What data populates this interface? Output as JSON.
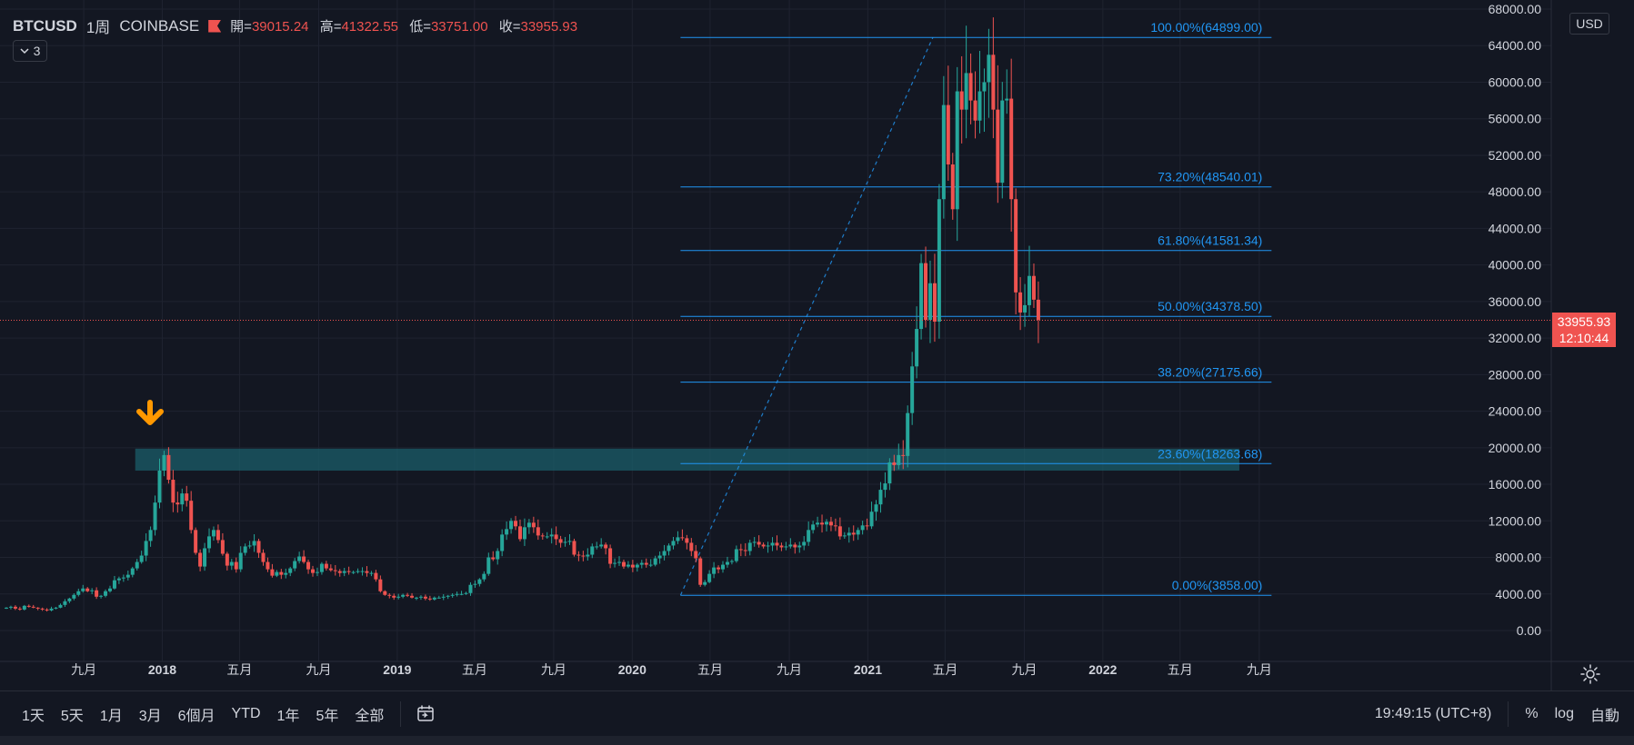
{
  "legend": {
    "symbol": "BTCUSD",
    "interval": "1周",
    "exchange": "COINBASE",
    "ohlc": [
      {
        "label": "開=",
        "value": "39015.24"
      },
      {
        "label": "高=",
        "value": "41322.55"
      },
      {
        "label": "低=",
        "value": "33751.00"
      },
      {
        "label": "收=",
        "value": "33955.93"
      }
    ],
    "indicator_count": "3"
  },
  "currency_label": "USD",
  "last_price": {
    "value": "33955.93",
    "countdown": "12:10:44"
  },
  "colors": {
    "up": "#26a69a",
    "down": "#ef5350",
    "fib": "#2196f3",
    "zone": "#1b5e6a",
    "arrow": "#ff9800"
  },
  "bottom_bar": {
    "ranges": [
      "1天",
      "5天",
      "1月",
      "3月",
      "6個月",
      "YTD",
      "1年",
      "5年",
      "全部"
    ],
    "time": "19:49:15 (UTC+8)",
    "percent": "%",
    "log": "log",
    "auto": "自動"
  },
  "chart_data": {
    "type": "candlestick",
    "ylim": [
      0,
      68000
    ],
    "y_ticks": [
      0,
      4000,
      8000,
      12000,
      16000,
      20000,
      24000,
      28000,
      32000,
      36000,
      40000,
      44000,
      48000,
      52000,
      56000,
      60000,
      64000,
      68000
    ],
    "y_tick_labels": [
      "0.00",
      "4000.00",
      "8000.00",
      "12000.00",
      "16000.00",
      "20000.00",
      "24000.00",
      "28000.00",
      "32000.00",
      "36000.00",
      "40000.00",
      "44000.00",
      "48000.00",
      "52000.00",
      "56000.00",
      "60000.00",
      "64000.00",
      "68000.00"
    ],
    "x_start": "2017-05-01",
    "x_ticks": [
      {
        "date": "2017-09-01",
        "label": "九月",
        "bold": false
      },
      {
        "date": "2018-01-01",
        "label": "2018",
        "bold": true
      },
      {
        "date": "2018-05-01",
        "label": "五月",
        "bold": false
      },
      {
        "date": "2018-09-01",
        "label": "九月",
        "bold": false
      },
      {
        "date": "2019-01-01",
        "label": "2019",
        "bold": true
      },
      {
        "date": "2019-05-01",
        "label": "五月",
        "bold": false
      },
      {
        "date": "2019-09-01",
        "label": "九月",
        "bold": false
      },
      {
        "date": "2020-01-01",
        "label": "2020",
        "bold": true
      },
      {
        "date": "2020-05-01",
        "label": "五月",
        "bold": false
      },
      {
        "date": "2020-09-01",
        "label": "九月",
        "bold": false
      },
      {
        "date": "2021-01-01",
        "label": "2021",
        "bold": true
      },
      {
        "date": "2021-05-01",
        "label": "五月",
        "bold": false
      },
      {
        "date": "2021-09-01",
        "label": "九月",
        "bold": false
      },
      {
        "date": "2022-01-01",
        "label": "2022",
        "bold": true
      },
      {
        "date": "2022-05-01",
        "label": "五月",
        "bold": false
      },
      {
        "date": "2022-09-01",
        "label": "九月",
        "bold": false
      }
    ],
    "closes": [
      2500,
      2600,
      2400,
      2300,
      2700,
      2600,
      2500,
      2400,
      2300,
      2200,
      2400,
      2500,
      2800,
      3200,
      3500,
      3900,
      4300,
      4600,
      4300,
      4400,
      3700,
      3800,
      4300,
      4600,
      5500,
      5700,
      5800,
      6100,
      6800,
      7500,
      8200,
      9800,
      11000,
      14000,
      17500,
      19200,
      16500,
      14000,
      13800,
      15000,
      14200,
      11000,
      8500,
      7000,
      9000,
      10300,
      11000,
      9900,
      8400,
      7100,
      7500,
      6700,
      8500,
      9200,
      9300,
      9800,
      8500,
      7500,
      6700,
      6000,
      6400,
      6100,
      6300,
      6800,
      7600,
      8100,
      7500,
      6700,
      6300,
      6400,
      7300,
      6800,
      6600,
      6500,
      6300,
      6500,
      6400,
      6400,
      6500,
      6500,
      6300,
      6300,
      5600,
      4300,
      3900,
      3800,
      3600,
      3700,
      3900,
      3800,
      3600,
      3600,
      3700,
      3500,
      3400,
      3600,
      3600,
      3700,
      3800,
      3900,
      4000,
      4000,
      4100,
      5000,
      5100,
      5600,
      6200,
      8000,
      7800,
      8700,
      10500,
      11100,
      12000,
      11400,
      10000,
      11300,
      11800,
      11300,
      10400,
      10300,
      10300,
      10500,
      10000,
      9600,
      9700,
      9800,
      8300,
      8200,
      8100,
      8300,
      9200,
      9200,
      9400,
      9000,
      7300,
      7400,
      7500,
      7000,
      7200,
      6900,
      7200,
      7400,
      7200,
      7200,
      7900,
      8200,
      8700,
      9300,
      9800,
      10200,
      10100,
      9600,
      8700,
      7900,
      5000,
      5300,
      6200,
      6900,
      6700,
      7200,
      7500,
      7600,
      8900,
      8800,
      8700,
      9600,
      9700,
      9400,
      9200,
      9300,
      9600,
      9300,
      9100,
      9200,
      9400,
      9100,
      9300,
      9700,
      11000,
      11600,
      11800,
      11600,
      11900,
      11500,
      11400,
      10300,
      10400,
      10700,
      10500,
      11000,
      11500,
      11400,
      13000,
      13800,
      15400,
      16100,
      18400,
      18100,
      19200,
      19100,
      23800,
      28900,
      33000,
      40200,
      34000,
      38000,
      33800,
      47200,
      57500,
      51000,
      46100,
      59000,
      57000,
      61000,
      58000,
      55800,
      59000,
      60000,
      63000,
      57000,
      49000,
      58000,
      58200,
      47200,
      37000,
      34800,
      35600,
      38800,
      36200,
      34000
    ],
    "fib_levels": [
      {
        "pct": "100.00%",
        "value": "64899.00"
      },
      {
        "pct": "73.20%",
        "value": "48540.01"
      },
      {
        "pct": "61.80%",
        "value": "41581.34"
      },
      {
        "pct": "50.00%",
        "value": "34378.50"
      },
      {
        "pct": "38.20%",
        "value": "27175.66"
      },
      {
        "pct": "23.60%",
        "value": "18263.68"
      },
      {
        "pct": "0.00%",
        "value": "3858.00"
      }
    ],
    "fib_x_range": [
      "2020-03-16",
      "2022-09-20"
    ],
    "fib_trend": {
      "from": {
        "date": "2020-03-16",
        "value": 3858
      },
      "to": {
        "date": "2021-04-12",
        "value": 64899
      }
    },
    "zone": {
      "from_date": "2017-11-20",
      "to_date": "2022-08-01",
      "low": 17500,
      "high": 19900
    },
    "arrow_marker": {
      "date": "2017-12-14",
      "value": 23500
    },
    "last_price_value": 33955.93
  }
}
